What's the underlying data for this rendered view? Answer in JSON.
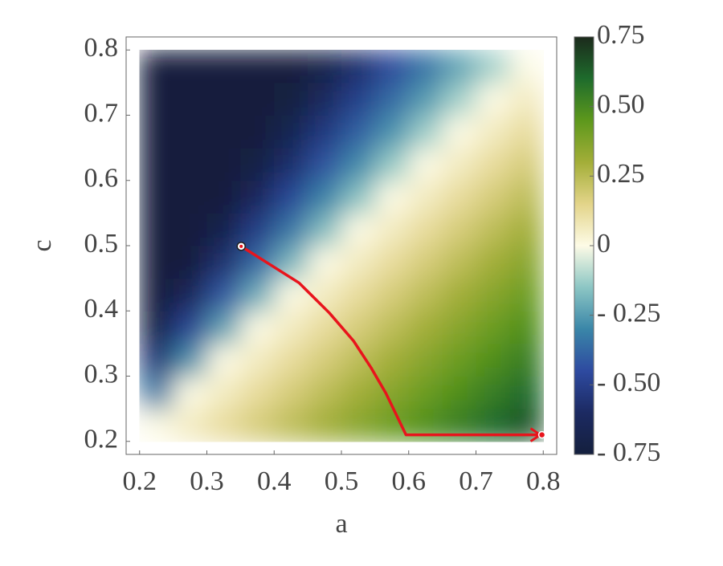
{
  "chart_data": {
    "type": "heatmap",
    "xlabel": "a",
    "ylabel": "c",
    "x": [
      0.225,
      0.275,
      0.325,
      0.375,
      0.425,
      0.475,
      0.525,
      0.575,
      0.625,
      0.675,
      0.725,
      0.775
    ],
    "y": [
      0.225,
      0.275,
      0.325,
      0.375,
      0.425,
      0.475,
      0.525,
      0.575,
      0.625,
      0.675,
      0.725,
      0.775
    ],
    "z": [
      [
        0,
        0.06,
        0.12,
        0.18,
        0.24,
        0.3,
        0.36,
        0.42,
        0.48,
        0.54,
        0.6,
        0.66
      ],
      [
        -0.33,
        0,
        0.06,
        0.12,
        0.18,
        0.24,
        0.3,
        0.36,
        0.42,
        0.48,
        0.54,
        0.6
      ],
      [
        -0.55,
        -0.28,
        0,
        0.06,
        0.12,
        0.18,
        0.24,
        0.3,
        0.36,
        0.42,
        0.48,
        0.54
      ],
      [
        -0.72,
        -0.48,
        -0.24,
        0,
        0.06,
        0.12,
        0.18,
        0.24,
        0.3,
        0.36,
        0.42,
        0.48
      ],
      [
        -0.75,
        -0.64,
        -0.42,
        -0.21,
        0,
        0.06,
        0.12,
        0.18,
        0.24,
        0.3,
        0.36,
        0.42
      ],
      [
        -0.75,
        -0.75,
        -0.57,
        -0.38,
        -0.19,
        0,
        0.06,
        0.12,
        0.18,
        0.24,
        0.3,
        0.36
      ],
      [
        -0.75,
        -0.75,
        -0.69,
        -0.51,
        -0.34,
        -0.17,
        0,
        0.06,
        0.12,
        0.18,
        0.24,
        0.3
      ],
      [
        -0.75,
        -0.75,
        -0.75,
        -0.63,
        -0.47,
        -0.31,
        -0.16,
        0,
        0.06,
        0.12,
        0.18,
        0.24
      ],
      [
        -0.75,
        -0.75,
        -0.75,
        -0.72,
        -0.58,
        -0.43,
        -0.29,
        -0.14,
        0,
        0.06,
        0.12,
        0.18
      ],
      [
        -0.75,
        -0.75,
        -0.75,
        -0.75,
        -0.67,
        -0.53,
        -0.4,
        -0.27,
        -0.13,
        0,
        0.06,
        0.12
      ],
      [
        -0.75,
        -0.75,
        -0.75,
        -0.75,
        -0.74,
        -0.62,
        -0.5,
        -0.37,
        -0.25,
        -0.12,
        0,
        0.06
      ],
      [
        -0.75,
        -0.75,
        -0.75,
        -0.75,
        -0.75,
        -0.7,
        -0.58,
        -0.46,
        -0.35,
        -0.23,
        -0.12,
        0
      ]
    ],
    "colormap": [
      "#141f3d",
      "#1c2a62",
      "#2e4aa0",
      "#3a86a8",
      "#8cc6c4",
      "#fdfbe6",
      "#e3d489",
      "#a3ae38",
      "#5d981c",
      "#1e6b2c",
      "#1c2a1c"
    ],
    "zlim": [
      -0.75,
      0.75
    ],
    "zticks": [
      {
        "value": -0.75,
        "label": "- 0.75"
      },
      {
        "value": -0.5,
        "label": "- 0.50"
      },
      {
        "value": -0.25,
        "label": "- 0.25"
      },
      0,
      0.25,
      {
        "value": 0.5,
        "label": "0.50"
      },
      0.75
    ],
    "xlim": [
      0.18,
      0.82
    ],
    "ylim": [
      0.18,
      0.82
    ],
    "xticks": [
      0.2,
      0.3,
      0.4,
      0.5,
      0.6,
      0.7,
      0.8
    ],
    "yticks": [
      0.2,
      0.3,
      0.4,
      0.5,
      0.6,
      0.7,
      0.8
    ],
    "overlay": {
      "type": "line",
      "color": "#e8141c",
      "x": [
        0.351,
        0.437,
        0.482,
        0.518,
        0.544,
        0.566,
        0.596,
        0.798
      ],
      "y": [
        0.499,
        0.443,
        0.397,
        0.354,
        0.313,
        0.274,
        0.21,
        0.21
      ]
    }
  }
}
